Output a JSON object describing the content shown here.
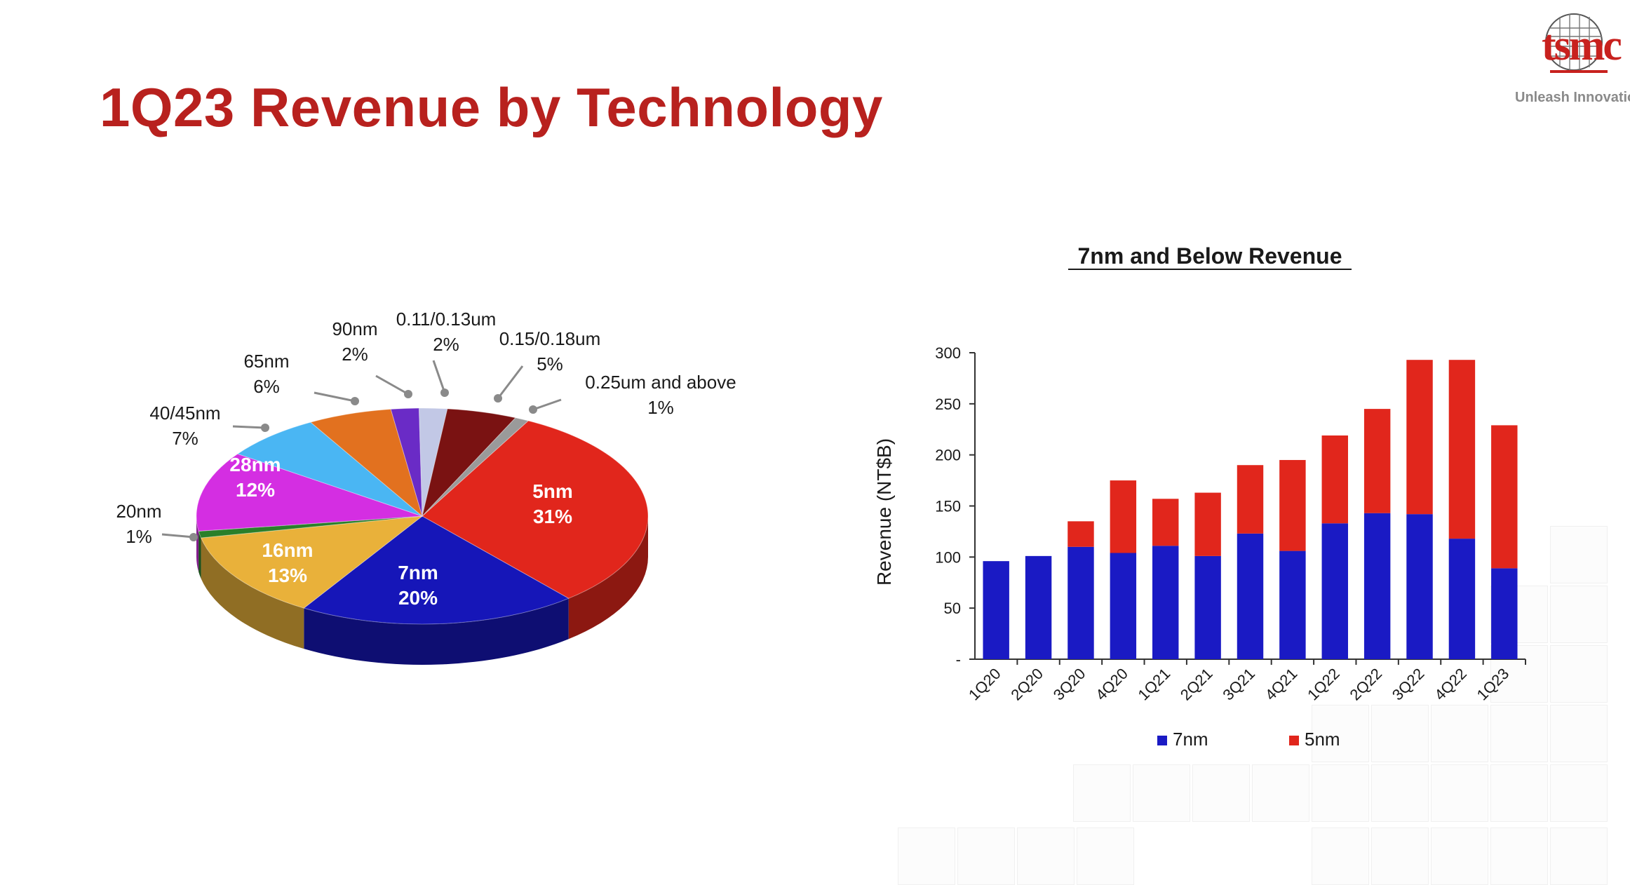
{
  "slide": {
    "title": "1Q23 Revenue by Technology",
    "logo_text": "tsmc",
    "logo_tagline": "Unleash Innovation",
    "accent_color": "#b8211e"
  },
  "chart_data": [
    {
      "type": "pie",
      "title": "",
      "slices": [
        {
          "label": "5nm",
          "value": 31,
          "value_text": "31%",
          "color": "#e1261c"
        },
        {
          "label": "7nm",
          "value": 20,
          "value_text": "20%",
          "color": "#1616b8"
        },
        {
          "label": "16nm",
          "value": 13,
          "value_text": "13%",
          "color": "#e9b13a"
        },
        {
          "label": "20nm",
          "value": 1,
          "value_text": "1%",
          "color": "#2a7f2a"
        },
        {
          "label": "28nm",
          "value": 12,
          "value_text": "12%",
          "color": "#d42ee2"
        },
        {
          "label": "40/45nm",
          "value": 7,
          "value_text": "7%",
          "color": "#4ab6f3"
        },
        {
          "label": "65nm",
          "value": 6,
          "value_text": "6%",
          "color": "#e2711f"
        },
        {
          "label": "90nm",
          "value": 2,
          "value_text": "2%",
          "color": "#6a2bc6"
        },
        {
          "label": "0.11/0.13um",
          "value": 2,
          "value_text": "2%",
          "color": "#c2c8e6"
        },
        {
          "label": "0.15/0.18um",
          "value": 5,
          "value_text": "5%",
          "color": "#7a1212"
        },
        {
          "label": "0.25um and above",
          "value": 1,
          "value_text": "1%",
          "color": "#9a9a9a"
        }
      ]
    },
    {
      "type": "bar",
      "stacked": true,
      "title": "7nm and Below Revenue",
      "xlabel": "",
      "ylabel": "Revenue (NT$B)",
      "ylim": [
        0,
        300
      ],
      "yticks": [
        0,
        50,
        100,
        150,
        200,
        250,
        300
      ],
      "ytick_labels": [
        "-",
        "50",
        "100",
        "150",
        "200",
        "250",
        "300"
      ],
      "categories": [
        "1Q20",
        "2Q20",
        "3Q20",
        "4Q20",
        "1Q21",
        "2Q21",
        "3Q21",
        "4Q21",
        "1Q22",
        "2Q22",
        "3Q22",
        "4Q22",
        "1Q23"
      ],
      "series": [
        {
          "name": "7nm",
          "color": "#1a1ac4",
          "values": [
            96,
            101,
            110,
            104,
            111,
            101,
            123,
            106,
            133,
            143,
            142,
            118,
            89
          ]
        },
        {
          "name": "5nm",
          "color": "#e1261c",
          "values": [
            0,
            0,
            25,
            71,
            46,
            62,
            67,
            89,
            86,
            102,
            151,
            175,
            140
          ]
        }
      ],
      "grid": false,
      "legend_position": "bottom"
    }
  ]
}
